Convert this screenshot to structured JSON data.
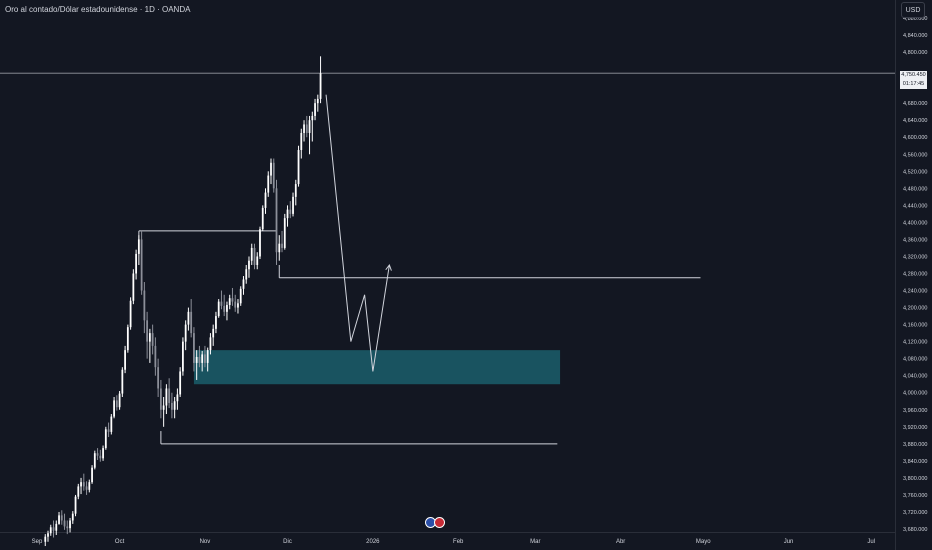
{
  "header": {
    "title": "Oro al contado/Dólar estadounidense · 1D · OANDA",
    "currency": "USD"
  },
  "last_price": {
    "value": "4,750.450",
    "countdown": "01:17:45"
  },
  "event_icons": [
    "eu-flag-icon",
    "us-flag-icon"
  ],
  "colors": {
    "background": "#131722",
    "up_candle": "#ffffff",
    "down_candle": "#8c8f99",
    "demand_zone": "#1b5e6b",
    "annotation_line": "#d1d4dc"
  },
  "chart_data": {
    "type": "candlestick",
    "symbol": "XAUUSD",
    "timeframe": "1D",
    "ylim": [
      3660,
      4900
    ],
    "y_ticks": [
      {
        "v": 4880,
        "label": "4,880.000"
      },
      {
        "v": 4840,
        "label": "4,840.000"
      },
      {
        "v": 4800,
        "label": "4,800.000"
      },
      {
        "v": 4680,
        "label": "4,680.000"
      },
      {
        "v": 4640,
        "label": "4,640.000"
      },
      {
        "v": 4600,
        "label": "4,600.000"
      },
      {
        "v": 4560,
        "label": "4,560.000"
      },
      {
        "v": 4520,
        "label": "4,520.000"
      },
      {
        "v": 4480,
        "label": "4,480.000"
      },
      {
        "v": 4440,
        "label": "4,440.000"
      },
      {
        "v": 4400,
        "label": "4,400.000"
      },
      {
        "v": 4360,
        "label": "4,360.000"
      },
      {
        "v": 4320,
        "label": "4,320.000"
      },
      {
        "v": 4280,
        "label": "4,280.000"
      },
      {
        "v": 4240,
        "label": "4,240.000"
      },
      {
        "v": 4200,
        "label": "4,200.000"
      },
      {
        "v": 4160,
        "label": "4,160.000"
      },
      {
        "v": 4120,
        "label": "4,120.000"
      },
      {
        "v": 4080,
        "label": "4,080.000"
      },
      {
        "v": 4040,
        "label": "4,040.000"
      },
      {
        "v": 4000,
        "label": "4,000.000"
      },
      {
        "v": 3960,
        "label": "3,960.000"
      },
      {
        "v": 3920,
        "label": "3,920.000"
      },
      {
        "v": 3880,
        "label": "3,880.000"
      },
      {
        "v": 3840,
        "label": "3,840.000"
      },
      {
        "v": 3800,
        "label": "3,800.000"
      },
      {
        "v": 3760,
        "label": "3,760.000"
      },
      {
        "v": 3720,
        "label": "3,720.000"
      },
      {
        "v": 3680,
        "label": "3,680.000"
      }
    ],
    "x_ticks": [
      {
        "d": 0,
        "label": "Sep"
      },
      {
        "d": 30,
        "label": "Oct"
      },
      {
        "d": 61,
        "label": "Nov"
      },
      {
        "d": 91,
        "label": "Dic"
      },
      {
        "d": 122,
        "label": "2026"
      },
      {
        "d": 153,
        "label": "Feb"
      },
      {
        "d": 181,
        "label": "Mar"
      },
      {
        "d": 212,
        "label": "Abr"
      },
      {
        "d": 242,
        "label": "Mayo"
      },
      {
        "d": 273,
        "label": "Jun"
      },
      {
        "d": 303,
        "label": "Jul"
      }
    ],
    "candles": [
      {
        "d": 3,
        "o": 3650,
        "h": 3668,
        "l": 3640,
        "c": 3662
      },
      {
        "d": 4,
        "o": 3662,
        "h": 3676,
        "l": 3650,
        "c": 3670
      },
      {
        "d": 5,
        "o": 3670,
        "h": 3690,
        "l": 3664,
        "c": 3684
      },
      {
        "d": 6,
        "o": 3684,
        "h": 3700,
        "l": 3660,
        "c": 3676
      },
      {
        "d": 7,
        "o": 3676,
        "h": 3700,
        "l": 3666,
        "c": 3692
      },
      {
        "d": 8,
        "o": 3692,
        "h": 3720,
        "l": 3690,
        "c": 3712
      },
      {
        "d": 9,
        "o": 3712,
        "h": 3724,
        "l": 3690,
        "c": 3700
      },
      {
        "d": 10,
        "o": 3700,
        "h": 3716,
        "l": 3678,
        "c": 3686
      },
      {
        "d": 11,
        "o": 3686,
        "h": 3700,
        "l": 3668,
        "c": 3682
      },
      {
        "d": 12,
        "o": 3682,
        "h": 3706,
        "l": 3672,
        "c": 3700
      },
      {
        "d": 13,
        "o": 3700,
        "h": 3722,
        "l": 3692,
        "c": 3716
      },
      {
        "d": 14,
        "o": 3716,
        "h": 3760,
        "l": 3710,
        "c": 3756
      },
      {
        "d": 15,
        "o": 3756,
        "h": 3786,
        "l": 3750,
        "c": 3780
      },
      {
        "d": 16,
        "o": 3780,
        "h": 3800,
        "l": 3762,
        "c": 3790
      },
      {
        "d": 17,
        "o": 3790,
        "h": 3810,
        "l": 3770,
        "c": 3780
      },
      {
        "d": 18,
        "o": 3780,
        "h": 3792,
        "l": 3760,
        "c": 3772
      },
      {
        "d": 19,
        "o": 3772,
        "h": 3796,
        "l": 3766,
        "c": 3790
      },
      {
        "d": 20,
        "o": 3790,
        "h": 3830,
        "l": 3786,
        "c": 3824
      },
      {
        "d": 21,
        "o": 3824,
        "h": 3864,
        "l": 3820,
        "c": 3858
      },
      {
        "d": 22,
        "o": 3858,
        "h": 3870,
        "l": 3842,
        "c": 3852
      },
      {
        "d": 23,
        "o": 3852,
        "h": 3866,
        "l": 3838,
        "c": 3846
      },
      {
        "d": 24,
        "o": 3846,
        "h": 3876,
        "l": 3840,
        "c": 3870
      },
      {
        "d": 25,
        "o": 3870,
        "h": 3920,
        "l": 3866,
        "c": 3914
      },
      {
        "d": 26,
        "o": 3914,
        "h": 3930,
        "l": 3896,
        "c": 3908
      },
      {
        "d": 27,
        "o": 3908,
        "h": 3950,
        "l": 3902,
        "c": 3944
      },
      {
        "d": 28,
        "o": 3944,
        "h": 3990,
        "l": 3940,
        "c": 3982
      },
      {
        "d": 29,
        "o": 3982,
        "h": 3994,
        "l": 3958,
        "c": 3966
      },
      {
        "d": 30,
        "o": 3966,
        "h": 4004,
        "l": 3960,
        "c": 3998
      },
      {
        "d": 31,
        "o": 3998,
        "h": 4060,
        "l": 3990,
        "c": 4054
      },
      {
        "d": 32,
        "o": 4054,
        "h": 4110,
        "l": 4046,
        "c": 4100
      },
      {
        "d": 33,
        "o": 4100,
        "h": 4160,
        "l": 4094,
        "c": 4154
      },
      {
        "d": 34,
        "o": 4154,
        "h": 4224,
        "l": 4148,
        "c": 4216
      },
      {
        "d": 35,
        "o": 4216,
        "h": 4290,
        "l": 4208,
        "c": 4280
      },
      {
        "d": 36,
        "o": 4280,
        "h": 4336,
        "l": 4266,
        "c": 4326
      },
      {
        "d": 37,
        "o": 4326,
        "h": 4370,
        "l": 4300,
        "c": 4360
      },
      {
        "d": 38,
        "o": 4360,
        "h": 4380,
        "l": 4230,
        "c": 4240
      },
      {
        "d": 39,
        "o": 4240,
        "h": 4260,
        "l": 4140,
        "c": 4170
      },
      {
        "d": 40,
        "o": 4170,
        "h": 4190,
        "l": 4080,
        "c": 4120
      },
      {
        "d": 41,
        "o": 4120,
        "h": 4150,
        "l": 4070,
        "c": 4140
      },
      {
        "d": 42,
        "o": 4140,
        "h": 4160,
        "l": 4090,
        "c": 4110
      },
      {
        "d": 43,
        "o": 4110,
        "h": 4130,
        "l": 4040,
        "c": 4060
      },
      {
        "d": 44,
        "o": 4060,
        "h": 4080,
        "l": 3990,
        "c": 4010
      },
      {
        "d": 45,
        "o": 4010,
        "h": 4030,
        "l": 3940,
        "c": 3960
      },
      {
        "d": 46,
        "o": 3960,
        "h": 3990,
        "l": 3920,
        "c": 3970
      },
      {
        "d": 47,
        "o": 3970,
        "h": 4020,
        "l": 3950,
        "c": 4010
      },
      {
        "d": 48,
        "o": 4010,
        "h": 4034,
        "l": 3964,
        "c": 3976
      },
      {
        "d": 49,
        "o": 3976,
        "h": 4000,
        "l": 3940,
        "c": 3960
      },
      {
        "d": 50,
        "o": 3960,
        "h": 3990,
        "l": 3940,
        "c": 3980
      },
      {
        "d": 51,
        "o": 3980,
        "h": 4010,
        "l": 3960,
        "c": 3996
      },
      {
        "d": 52,
        "o": 3996,
        "h": 4060,
        "l": 3990,
        "c": 4050
      },
      {
        "d": 53,
        "o": 4050,
        "h": 4130,
        "l": 4040,
        "c": 4120
      },
      {
        "d": 54,
        "o": 4120,
        "h": 4170,
        "l": 4100,
        "c": 4160
      },
      {
        "d": 55,
        "o": 4160,
        "h": 4200,
        "l": 4146,
        "c": 4190
      },
      {
        "d": 56,
        "o": 4190,
        "h": 4220,
        "l": 4130,
        "c": 4140
      },
      {
        "d": 57,
        "o": 4140,
        "h": 4154,
        "l": 4050,
        "c": 4070
      },
      {
        "d": 58,
        "o": 4070,
        "h": 4100,
        "l": 4030,
        "c": 4084
      },
      {
        "d": 59,
        "o": 4084,
        "h": 4110,
        "l": 4060,
        "c": 4070
      },
      {
        "d": 60,
        "o": 4070,
        "h": 4098,
        "l": 4050,
        "c": 4090
      },
      {
        "d": 61,
        "o": 4090,
        "h": 4110,
        "l": 4060,
        "c": 4070
      },
      {
        "d": 62,
        "o": 4070,
        "h": 4106,
        "l": 4050,
        "c": 4100
      },
      {
        "d": 63,
        "o": 4100,
        "h": 4140,
        "l": 4090,
        "c": 4130
      },
      {
        "d": 64,
        "o": 4130,
        "h": 4160,
        "l": 4110,
        "c": 4150
      },
      {
        "d": 65,
        "o": 4150,
        "h": 4190,
        "l": 4140,
        "c": 4180
      },
      {
        "d": 66,
        "o": 4180,
        "h": 4220,
        "l": 4176,
        "c": 4214
      },
      {
        "d": 67,
        "o": 4214,
        "h": 4240,
        "l": 4196,
        "c": 4204
      },
      {
        "d": 68,
        "o": 4204,
        "h": 4230,
        "l": 4180,
        "c": 4190
      },
      {
        "d": 69,
        "o": 4190,
        "h": 4214,
        "l": 4170,
        "c": 4206
      },
      {
        "d": 70,
        "o": 4206,
        "h": 4230,
        "l": 4196,
        "c": 4222
      },
      {
        "d": 71,
        "o": 4222,
        "h": 4246,
        "l": 4204,
        "c": 4214
      },
      {
        "d": 72,
        "o": 4214,
        "h": 4230,
        "l": 4190,
        "c": 4200
      },
      {
        "d": 73,
        "o": 4200,
        "h": 4220,
        "l": 4186,
        "c": 4210
      },
      {
        "d": 74,
        "o": 4210,
        "h": 4250,
        "l": 4204,
        "c": 4244
      },
      {
        "d": 75,
        "o": 4244,
        "h": 4274,
        "l": 4230,
        "c": 4266
      },
      {
        "d": 76,
        "o": 4266,
        "h": 4300,
        "l": 4256,
        "c": 4290
      },
      {
        "d": 77,
        "o": 4290,
        "h": 4320,
        "l": 4270,
        "c": 4310
      },
      {
        "d": 78,
        "o": 4310,
        "h": 4350,
        "l": 4300,
        "c": 4340
      },
      {
        "d": 79,
        "o": 4340,
        "h": 4350,
        "l": 4290,
        "c": 4300
      },
      {
        "d": 80,
        "o": 4300,
        "h": 4330,
        "l": 4290,
        "c": 4320
      },
      {
        "d": 81,
        "o": 4320,
        "h": 4390,
        "l": 4314,
        "c": 4384
      },
      {
        "d": 82,
        "o": 4384,
        "h": 4440,
        "l": 4380,
        "c": 4434
      },
      {
        "d": 83,
        "o": 4434,
        "h": 4480,
        "l": 4420,
        "c": 4470
      },
      {
        "d": 84,
        "o": 4470,
        "h": 4520,
        "l": 4460,
        "c": 4510
      },
      {
        "d": 85,
        "o": 4510,
        "h": 4550,
        "l": 4490,
        "c": 4540
      },
      {
        "d": 86,
        "o": 4540,
        "h": 4550,
        "l": 4470,
        "c": 4480
      },
      {
        "d": 87,
        "o": 4480,
        "h": 4500,
        "l": 4300,
        "c": 4330
      },
      {
        "d": 88,
        "o": 4330,
        "h": 4370,
        "l": 4310,
        "c": 4350
      },
      {
        "d": 89,
        "o": 4350,
        "h": 4380,
        "l": 4330,
        "c": 4340
      },
      {
        "d": 90,
        "o": 4340,
        "h": 4420,
        "l": 4336,
        "c": 4410
      },
      {
        "d": 91,
        "o": 4410,
        "h": 4440,
        "l": 4390,
        "c": 4430
      },
      {
        "d": 92,
        "o": 4430,
        "h": 4450,
        "l": 4410,
        "c": 4420
      },
      {
        "d": 93,
        "o": 4420,
        "h": 4470,
        "l": 4414,
        "c": 4460
      },
      {
        "d": 94,
        "o": 4460,
        "h": 4500,
        "l": 4440,
        "c": 4490
      },
      {
        "d": 95,
        "o": 4490,
        "h": 4580,
        "l": 4484,
        "c": 4570
      },
      {
        "d": 96,
        "o": 4570,
        "h": 4620,
        "l": 4550,
        "c": 4610
      },
      {
        "d": 97,
        "o": 4610,
        "h": 4640,
        "l": 4590,
        "c": 4630
      },
      {
        "d": 98,
        "o": 4630,
        "h": 4650,
        "l": 4600,
        "c": 4610
      },
      {
        "d": 99,
        "o": 4610,
        "h": 4650,
        "l": 4560,
        "c": 4640
      },
      {
        "d": 100,
        "o": 4640,
        "h": 4660,
        "l": 4590,
        "c": 4650
      },
      {
        "d": 101,
        "o": 4650,
        "h": 4690,
        "l": 4640,
        "c": 4680
      },
      {
        "d": 102,
        "o": 4680,
        "h": 4700,
        "l": 4660,
        "c": 4690
      },
      {
        "d": 103,
        "o": 4690,
        "h": 4790,
        "l": 4680,
        "c": 4750
      }
    ],
    "current_price": 4750.45,
    "annotations": {
      "demand_zone": {
        "d_start": 57,
        "d_end": 190,
        "low": 4020,
        "high": 4100
      },
      "supply_level": {
        "d_start": 37,
        "d_end": 87,
        "price": 4380
      },
      "mid_level": {
        "d_start": 88,
        "d_end": 241,
        "price": 4270
      },
      "swing_low": {
        "d_start": 45,
        "d_end": 189,
        "price": 3880
      },
      "projection_path": [
        {
          "d": 105,
          "p": 4700
        },
        {
          "d": 114,
          "p": 4120
        },
        {
          "d": 119,
          "p": 4230
        },
        {
          "d": 122,
          "p": 4050
        },
        {
          "d": 128,
          "p": 4300
        }
      ]
    }
  }
}
